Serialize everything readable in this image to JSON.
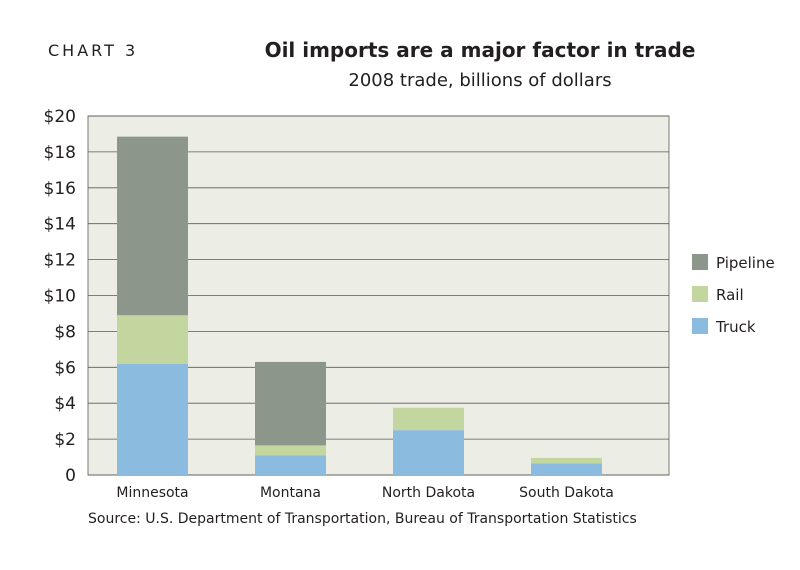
{
  "header": {
    "chart_label": "CHART 3"
  },
  "chart_data": {
    "type": "bar",
    "stacked": true,
    "title": "Oil imports are a major factor in trade",
    "subtitle": "2008 trade, billions of dollars",
    "source": "Source: U.S. Department of Transportation, Bureau of Transportation Statistics",
    "categories": [
      "Minnesota",
      "Montana",
      "North Dakota",
      "South Dakota"
    ],
    "series": [
      {
        "name": "Truck",
        "values": [
          6.2,
          1.1,
          2.5,
          0.65
        ]
      },
      {
        "name": "Rail",
        "values": [
          2.7,
          0.55,
          1.25,
          0.3
        ]
      },
      {
        "name": "Pipeline",
        "values": [
          9.95,
          4.65,
          0,
          0
        ]
      }
    ],
    "ylim": [
      0,
      20
    ],
    "yticks": [
      0,
      2,
      4,
      6,
      8,
      10,
      12,
      14,
      16,
      18,
      20
    ],
    "ytick_labels": [
      "0",
      "$2",
      "$4",
      "$6",
      "$8",
      "$10",
      "$12",
      "$14",
      "$16",
      "$18",
      "$20"
    ],
    "legend_order": [
      "Pipeline",
      "Rail",
      "Truck"
    ],
    "legend_position": "right",
    "grid": true,
    "colors": {
      "Truck": "#8bbce0",
      "Rail": "#c4d6a0",
      "Pipeline": "#8c968b",
      "plot_bg": "#eceee6",
      "grid": "#5a5a5a"
    }
  }
}
